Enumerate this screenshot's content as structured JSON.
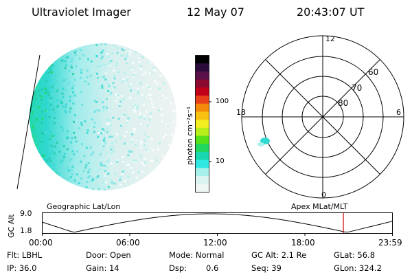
{
  "header": {
    "instrument": "Ultraviolet Imager",
    "date": "12 May 07",
    "time": "20:43:07 UT"
  },
  "colorbar": {
    "unit": "photon cm⁻²s⁻¹",
    "ticks": [
      "100",
      "10"
    ],
    "colors": [
      "#000000",
      "#2a0b3a",
      "#5a1048",
      "#8c0a30",
      "#c00018",
      "#e8401a",
      "#f58a0a",
      "#f8c010",
      "#f2ee20",
      "#b8ee1a",
      "#58e018",
      "#20d860",
      "#18d8b0",
      "#30e8e0",
      "#a8f0ec",
      "#dcf4f0",
      "#f0f6f4"
    ]
  },
  "polar": {
    "mlt_top": "12",
    "mlt_left": "18",
    "mlt_right": "6",
    "mlt_bottom": "0",
    "lat_60": "60",
    "lat_70": "70",
    "lat_80": "80"
  },
  "timeline": {
    "axis_label": "GC Alt",
    "ymax": "9.0",
    "ymin": "1.8",
    "left_title": "Geographic Lat/Lon",
    "right_title": "Apex MLat/MLT",
    "ticks": [
      "00:00",
      "06:00",
      "12:00",
      "18:00",
      "23:59"
    ],
    "marker_color": "#cc0000"
  },
  "info": {
    "flt": "Flt: LBHL",
    "ip": "IP: 36.0",
    "door": "Door: Open",
    "gain": "Gain: 14",
    "mode": "Mode: Normal",
    "dsp_label": "Dsp:",
    "dsp_value": "0.6",
    "gc_alt": "GC Alt: 2.1 Re",
    "seq": "Seq: 39",
    "glat": "GLat: 56.8",
    "glon": "GLon: 324.2"
  }
}
